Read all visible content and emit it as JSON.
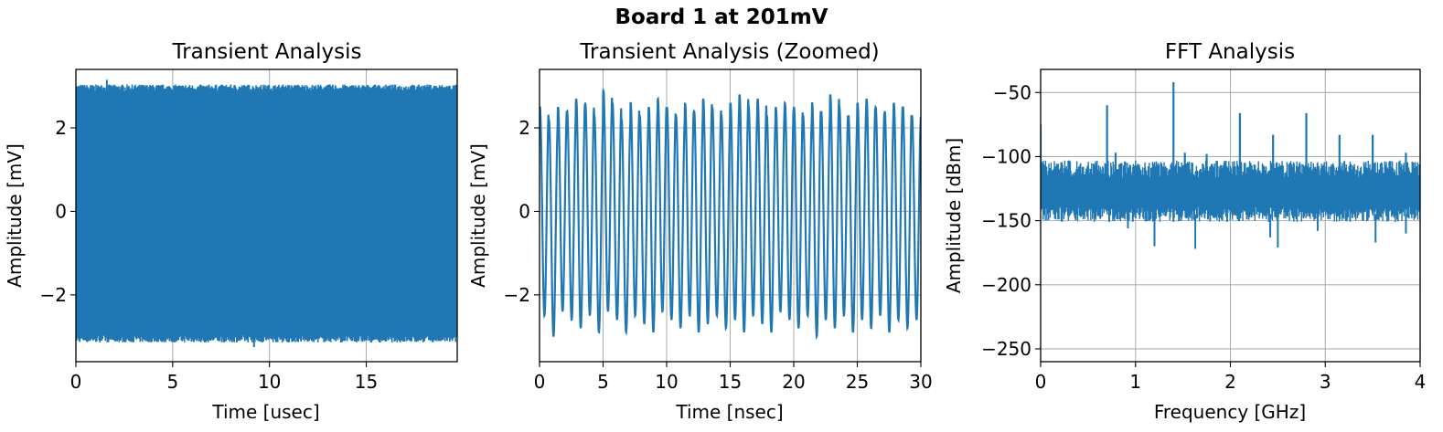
{
  "figure": {
    "suptitle": "Board 1 at 201mV"
  },
  "colors": {
    "line": "#1f77b4",
    "grid": "#b0b0b0",
    "axes": "#000000"
  },
  "chart_data": [
    {
      "type": "line",
      "title": "Transient Analysis",
      "xlabel": "Time [usec]",
      "ylabel": "Amplitude [mV]",
      "xlim": [
        0,
        19.7
      ],
      "ylim": [
        -3.6,
        3.4
      ],
      "xticks": [
        0,
        5,
        10,
        15
      ],
      "xtick_labels": [
        "0",
        "5",
        "10",
        "15"
      ],
      "yticks": [
        -2,
        0,
        2
      ],
      "ytick_labels": [
        "−2",
        "0",
        "2"
      ],
      "grid": true,
      "series": [
        {
          "description": "Dense sinusoid (~1.4 GHz) sampled over ~19.7 µs; envelope peaks",
          "envelope_max": 3.15,
          "envelope_min": -3.25,
          "typical_peak": 2.95,
          "typical_trough": -3.05
        }
      ]
    },
    {
      "type": "line",
      "title": "Transient Analysis (Zoomed)",
      "xlabel": "Time [nsec]",
      "ylabel": "Amplitude [mV]",
      "xlim": [
        0,
        30
      ],
      "ylim": [
        -3.6,
        3.4
      ],
      "xticks": [
        0,
        5,
        10,
        15,
        20,
        25,
        30
      ],
      "xtick_labels": [
        "0",
        "5",
        "10",
        "15",
        "20",
        "25",
        "30"
      ],
      "yticks": [
        -2,
        0,
        2
      ],
      "ytick_labels": [
        "−2",
        "0",
        "2"
      ],
      "grid": true,
      "series": [
        {
          "period_ns": 0.714,
          "peaks": [
            2.5,
            2.2,
            2.5,
            2.4,
            2.7,
            2.6,
            2.3,
            2.9,
            2.6,
            2.2,
            2.6,
            2.3,
            2.5,
            2.7,
            2.5,
            2.3,
            2.6,
            2.4,
            2.7,
            2.5,
            2.3,
            2.6,
            2.8,
            2.5,
            2.7,
            2.3,
            2.5,
            2.6,
            2.5,
            2.3,
            2.6,
            2.4,
            2.8,
            2.5,
            2.3,
            2.6,
            2.7,
            2.5,
            2.4,
            2.6,
            2.5,
            2.3
          ],
          "troughs": [
            -2.5,
            -3.0,
            -2.4,
            -2.6,
            -2.8,
            -2.5,
            -2.9,
            -2.4,
            -2.6,
            -2.9,
            -2.5,
            -2.7,
            -2.9,
            -2.4,
            -2.6,
            -2.8,
            -2.5,
            -2.9,
            -2.7,
            -2.5,
            -2.8,
            -2.6,
            -2.9,
            -2.5,
            -2.7,
            -2.9,
            -2.4,
            -2.6,
            -2.8,
            -2.5,
            -3.0,
            -2.6,
            -2.8,
            -2.5,
            -2.9,
            -2.6,
            -2.8,
            -2.5,
            -2.9,
            -2.6,
            -2.8,
            -2.6
          ]
        }
      ]
    },
    {
      "type": "line",
      "title": "FFT Analysis",
      "xlabel": "Frequency [GHz]",
      "ylabel": "Amplitude [dBm]",
      "xlim": [
        0,
        4
      ],
      "ylim": [
        -260,
        -32
      ],
      "xticks": [
        0,
        1,
        2,
        3,
        4
      ],
      "xtick_labels": [
        "0",
        "1",
        "2",
        "3",
        "4"
      ],
      "yticks": [
        -250,
        -200,
        -150,
        -100,
        -50
      ],
      "ytick_labels": [
        "−250",
        "−200",
        "−150",
        "−100",
        "−50"
      ],
      "grid": true,
      "noise_floor": {
        "upper": -110,
        "lower": -145,
        "deep_dips": [
          {
            "x": 0.92,
            "y": -156
          },
          {
            "x": 1.2,
            "y": -170
          },
          {
            "x": 1.63,
            "y": -172
          },
          {
            "x": 2.5,
            "y": -171
          },
          {
            "x": 2.42,
            "y": -163
          },
          {
            "x": 2.92,
            "y": -158
          },
          {
            "x": 3.53,
            "y": -167
          },
          {
            "x": 3.85,
            "y": -160
          }
        ]
      },
      "peaks": [
        {
          "x": 0.0,
          "y": -75
        },
        {
          "x": 0.7,
          "y": -60
        },
        {
          "x": 0.79,
          "y": -97
        },
        {
          "x": 1.4,
          "y": -42
        },
        {
          "x": 1.52,
          "y": -97
        },
        {
          "x": 1.75,
          "y": -98
        },
        {
          "x": 2.1,
          "y": -66
        },
        {
          "x": 2.45,
          "y": -83
        },
        {
          "x": 2.8,
          "y": -66
        },
        {
          "x": 3.15,
          "y": -83
        },
        {
          "x": 3.5,
          "y": -83
        },
        {
          "x": 3.85,
          "y": -97
        }
      ]
    }
  ]
}
